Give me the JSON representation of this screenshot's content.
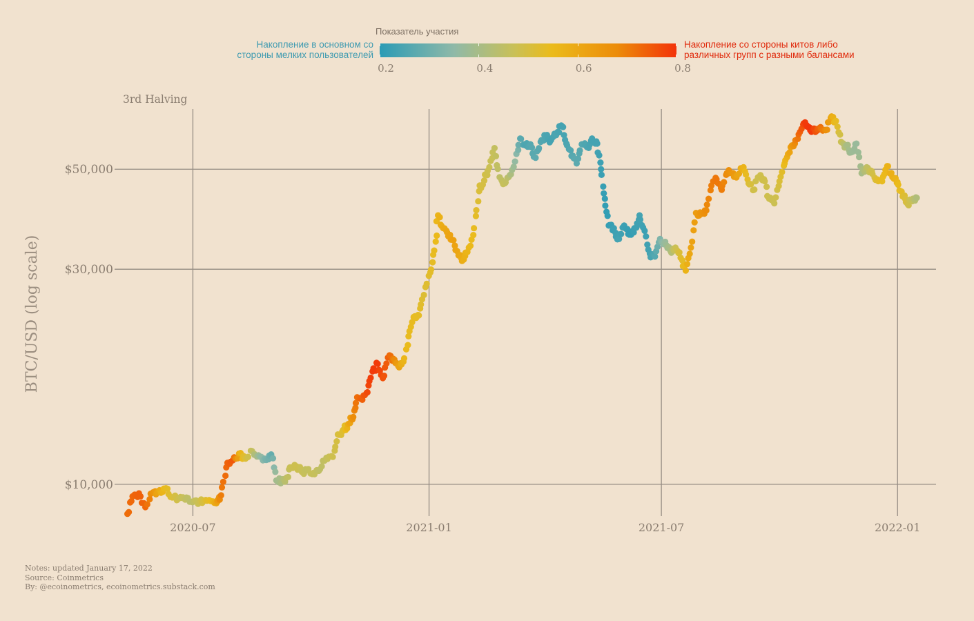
{
  "legend": {
    "title": "Показатель участия",
    "low_label_line1": "Накопление в основном со",
    "low_label_line2": "стороны мелких пользователей",
    "high_label_line1": "Накопление со стороны китов либо",
    "high_label_line2": "различных групп с разными балансами",
    "ticks": [
      "0.2",
      "0.4",
      "0.6",
      "0.8"
    ],
    "tick_values": [
      0.2,
      0.4,
      0.6,
      0.8
    ],
    "range": [
      0.2,
      0.8
    ],
    "colors": [
      "#2b9bb5",
      "#8fb9a8",
      "#c8c058",
      "#ebbb1b",
      "#ec8c0a",
      "#f3330a"
    ],
    "low_color": "#3d9ab0",
    "high_color": "#e02a0c"
  },
  "notes": [
    "Notes: updated January 17, 2022",
    "Source: Coinmetrics",
    "By: @ecoinometrics, ecoinometrics.substack.com"
  ],
  "chart_data": {
    "type": "scatter",
    "annotation": "3rd Halving",
    "ylabel": "BTC/USD (log scale)",
    "xlabel": "",
    "y_scale": "log",
    "ylim": [
      8500,
      68000
    ],
    "xlim": [
      "2020-05-01",
      "2022-01-31"
    ],
    "x_ticks": [
      "2020-07-01",
      "2021-01-01",
      "2021-07-01",
      "2022-01-01"
    ],
    "x_tick_labels": [
      "2020-07",
      "2021-01",
      "2021-07",
      "2022-01"
    ],
    "y_ticks": [
      10000,
      30000,
      50000
    ],
    "y_tick_labels": [
      "$10,000",
      "$30,000",
      "$50,000"
    ],
    "grid": true,
    "color_by": "participation",
    "series": [
      {
        "points": [
          {
            "date": "2020-05-11",
            "price": 8600,
            "participation": 0.72
          },
          {
            "date": "2020-05-15",
            "price": 9400,
            "participation": 0.73
          },
          {
            "date": "2020-05-20",
            "price": 9550,
            "participation": 0.74
          },
          {
            "date": "2020-05-25",
            "price": 8900,
            "participation": 0.73
          },
          {
            "date": "2020-05-31",
            "price": 9600,
            "participation": 0.66
          },
          {
            "date": "2020-06-05",
            "price": 9700,
            "participation": 0.6
          },
          {
            "date": "2020-06-10",
            "price": 9800,
            "participation": 0.55
          },
          {
            "date": "2020-06-15",
            "price": 9350,
            "participation": 0.5
          },
          {
            "date": "2020-06-20",
            "price": 9300,
            "participation": 0.46
          },
          {
            "date": "2020-06-25",
            "price": 9250,
            "participation": 0.43
          },
          {
            "date": "2020-06-30",
            "price": 9150,
            "participation": 0.41
          },
          {
            "date": "2020-07-05",
            "price": 9050,
            "participation": 0.45
          },
          {
            "date": "2020-07-10",
            "price": 9200,
            "participation": 0.5
          },
          {
            "date": "2020-07-15",
            "price": 9180,
            "participation": 0.56
          },
          {
            "date": "2020-07-20",
            "price": 9150,
            "participation": 0.63
          },
          {
            "date": "2020-07-23",
            "price": 9450,
            "participation": 0.7
          },
          {
            "date": "2020-07-27",
            "price": 10900,
            "participation": 0.73
          },
          {
            "date": "2020-08-01",
            "price": 11300,
            "participation": 0.75
          },
          {
            "date": "2020-08-06",
            "price": 11700,
            "participation": 0.6
          },
          {
            "date": "2020-08-11",
            "price": 11400,
            "participation": 0.5
          },
          {
            "date": "2020-08-16",
            "price": 11850,
            "participation": 0.43
          },
          {
            "date": "2020-08-21",
            "price": 11600,
            "participation": 0.35
          },
          {
            "date": "2020-08-26",
            "price": 11400,
            "participation": 0.3
          },
          {
            "date": "2020-08-31",
            "price": 11650,
            "participation": 0.27
          },
          {
            "date": "2020-09-04",
            "price": 10200,
            "participation": 0.36
          },
          {
            "date": "2020-09-08",
            "price": 10100,
            "participation": 0.38
          },
          {
            "date": "2020-09-12",
            "price": 10350,
            "participation": 0.42
          },
          {
            "date": "2020-09-16",
            "price": 10900,
            "participation": 0.45
          },
          {
            "date": "2020-09-20",
            "price": 10950,
            "participation": 0.46
          },
          {
            "date": "2020-09-24",
            "price": 10650,
            "participation": 0.44
          },
          {
            "date": "2020-09-28",
            "price": 10750,
            "participation": 0.43
          },
          {
            "date": "2020-10-03",
            "price": 10600,
            "participation": 0.44
          },
          {
            "date": "2020-10-08",
            "price": 10800,
            "participation": 0.42
          },
          {
            "date": "2020-10-13",
            "price": 11450,
            "participation": 0.43
          },
          {
            "date": "2020-10-18",
            "price": 11500,
            "participation": 0.46
          },
          {
            "date": "2020-10-22",
            "price": 12900,
            "participation": 0.49
          },
          {
            "date": "2020-10-26",
            "price": 13200,
            "participation": 0.52
          },
          {
            "date": "2020-10-30",
            "price": 13600,
            "participation": 0.6
          },
          {
            "date": "2020-11-03",
            "price": 14100,
            "participation": 0.68
          },
          {
            "date": "2020-11-06",
            "price": 15600,
            "participation": 0.72
          },
          {
            "date": "2020-11-10",
            "price": 15400,
            "participation": 0.74
          },
          {
            "date": "2020-11-14",
            "price": 16000,
            "participation": 0.77
          },
          {
            "date": "2020-11-18",
            "price": 17800,
            "participation": 0.79
          },
          {
            "date": "2020-11-22",
            "price": 18500,
            "participation": 0.79
          },
          {
            "date": "2020-11-26",
            "price": 17200,
            "participation": 0.76
          },
          {
            "date": "2020-11-30",
            "price": 19100,
            "participation": 0.74
          },
          {
            "date": "2020-12-04",
            "price": 19000,
            "participation": 0.7
          },
          {
            "date": "2020-12-08",
            "price": 18300,
            "participation": 0.63
          },
          {
            "date": "2020-12-12",
            "price": 18700,
            "participation": 0.58
          },
          {
            "date": "2020-12-16",
            "price": 21300,
            "participation": 0.55
          },
          {
            "date": "2020-12-20",
            "price": 23500,
            "participation": 0.55
          },
          {
            "date": "2020-12-24",
            "price": 23700,
            "participation": 0.54
          },
          {
            "date": "2020-12-28",
            "price": 26300,
            "participation": 0.51
          },
          {
            "date": "2021-01-02",
            "price": 29500,
            "participation": 0.53
          },
          {
            "date": "2021-01-05",
            "price": 33000,
            "participation": 0.55
          },
          {
            "date": "2021-01-08",
            "price": 39500,
            "participation": 0.58
          },
          {
            "date": "2021-01-12",
            "price": 37000,
            "participation": 0.6
          },
          {
            "date": "2021-01-16",
            "price": 35500,
            "participation": 0.62
          },
          {
            "date": "2021-01-20",
            "price": 34800,
            "participation": 0.63
          },
          {
            "date": "2021-01-24",
            "price": 32200,
            "participation": 0.61
          },
          {
            "date": "2021-01-28",
            "price": 31500,
            "participation": 0.59
          },
          {
            "date": "2021-02-01",
            "price": 33500,
            "participation": 0.57
          },
          {
            "date": "2021-02-05",
            "price": 37000,
            "participation": 0.55
          },
          {
            "date": "2021-02-09",
            "price": 44700,
            "participation": 0.5
          },
          {
            "date": "2021-02-13",
            "price": 47200,
            "participation": 0.48
          },
          {
            "date": "2021-02-17",
            "price": 50500,
            "participation": 0.45
          },
          {
            "date": "2021-02-21",
            "price": 55700,
            "participation": 0.43
          },
          {
            "date": "2021-02-25",
            "price": 48000,
            "participation": 0.42
          },
          {
            "date": "2021-03-01",
            "price": 46500,
            "participation": 0.44
          },
          {
            "date": "2021-03-05",
            "price": 48500,
            "participation": 0.4
          },
          {
            "date": "2021-03-09",
            "price": 52000,
            "participation": 0.33
          },
          {
            "date": "2021-03-13",
            "price": 58500,
            "participation": 0.26
          },
          {
            "date": "2021-03-17",
            "price": 56500,
            "participation": 0.24
          },
          {
            "date": "2021-03-21",
            "price": 56800,
            "participation": 0.25
          },
          {
            "date": "2021-03-25",
            "price": 53000,
            "participation": 0.26
          },
          {
            "date": "2021-03-29",
            "price": 57500,
            "participation": 0.25
          },
          {
            "date": "2021-04-02",
            "price": 59000,
            "participation": 0.24
          },
          {
            "date": "2021-04-06",
            "price": 58000,
            "participation": 0.23
          },
          {
            "date": "2021-04-10",
            "price": 59500,
            "participation": 0.24
          },
          {
            "date": "2021-04-14",
            "price": 62500,
            "participation": 0.23
          },
          {
            "date": "2021-04-18",
            "price": 57000,
            "participation": 0.24
          },
          {
            "date": "2021-04-22",
            "price": 53500,
            "participation": 0.25
          },
          {
            "date": "2021-04-26",
            "price": 51500,
            "participation": 0.26
          },
          {
            "date": "2021-04-30",
            "price": 56800,
            "participation": 0.25
          },
          {
            "date": "2021-05-04",
            "price": 56000,
            "participation": 0.24
          },
          {
            "date": "2021-05-08",
            "price": 58500,
            "participation": 0.23
          },
          {
            "date": "2021-05-12",
            "price": 57000,
            "participation": 0.23
          },
          {
            "date": "2021-05-15",
            "price": 50000,
            "participation": 0.22
          },
          {
            "date": "2021-05-18",
            "price": 43000,
            "participation": 0.21
          },
          {
            "date": "2021-05-21",
            "price": 37500,
            "participation": 0.21
          },
          {
            "date": "2021-05-25",
            "price": 37000,
            "participation": 0.22
          },
          {
            "date": "2021-05-29",
            "price": 35000,
            "participation": 0.23
          },
          {
            "date": "2021-06-02",
            "price": 37500,
            "participation": 0.22
          },
          {
            "date": "2021-06-06",
            "price": 35800,
            "participation": 0.21
          },
          {
            "date": "2021-06-10",
            "price": 37000,
            "participation": 0.22
          },
          {
            "date": "2021-06-14",
            "price": 39500,
            "participation": 0.23
          },
          {
            "date": "2021-06-18",
            "price": 36500,
            "participation": 0.22
          },
          {
            "date": "2021-06-22",
            "price": 32500,
            "participation": 0.23
          },
          {
            "date": "2021-06-26",
            "price": 32000,
            "participation": 0.25
          },
          {
            "date": "2021-06-30",
            "price": 35000,
            "participation": 0.3
          },
          {
            "date": "2021-07-04",
            "price": 34500,
            "participation": 0.34
          },
          {
            "date": "2021-07-08",
            "price": 33000,
            "participation": 0.38
          },
          {
            "date": "2021-07-12",
            "price": 33500,
            "participation": 0.45
          },
          {
            "date": "2021-07-16",
            "price": 31800,
            "participation": 0.52
          },
          {
            "date": "2021-07-20",
            "price": 29800,
            "participation": 0.58
          },
          {
            "date": "2021-07-24",
            "price": 33500,
            "participation": 0.62
          },
          {
            "date": "2021-07-28",
            "price": 40000,
            "participation": 0.64
          },
          {
            "date": "2021-08-01",
            "price": 39800,
            "participation": 0.66
          },
          {
            "date": "2021-08-05",
            "price": 40500,
            "participation": 0.68
          },
          {
            "date": "2021-08-09",
            "price": 46000,
            "participation": 0.7
          },
          {
            "date": "2021-08-13",
            "price": 47500,
            "participation": 0.71
          },
          {
            "date": "2021-08-17",
            "price": 45000,
            "participation": 0.7
          },
          {
            "date": "2021-08-21",
            "price": 49000,
            "participation": 0.68
          },
          {
            "date": "2021-08-25",
            "price": 49000,
            "participation": 0.66
          },
          {
            "date": "2021-08-29",
            "price": 48500,
            "participation": 0.62
          },
          {
            "date": "2021-09-03",
            "price": 50500,
            "participation": 0.58
          },
          {
            "date": "2021-09-07",
            "price": 46500,
            "participation": 0.52
          },
          {
            "date": "2021-09-11",
            "price": 45000,
            "participation": 0.47
          },
          {
            "date": "2021-09-15",
            "price": 48000,
            "participation": 0.46
          },
          {
            "date": "2021-09-19",
            "price": 47500,
            "participation": 0.47
          },
          {
            "date": "2021-09-23",
            "price": 43000,
            "participation": 0.46
          },
          {
            "date": "2021-09-27",
            "price": 42000,
            "participation": 0.45
          },
          {
            "date": "2021-10-01",
            "price": 47000,
            "participation": 0.5
          },
          {
            "date": "2021-10-05",
            "price": 51500,
            "participation": 0.56
          },
          {
            "date": "2021-10-09",
            "price": 54500,
            "participation": 0.62
          },
          {
            "date": "2021-10-13",
            "price": 57000,
            "participation": 0.68
          },
          {
            "date": "2021-10-17",
            "price": 60500,
            "participation": 0.74
          },
          {
            "date": "2021-10-21",
            "price": 63500,
            "participation": 0.79
          },
          {
            "date": "2021-10-25",
            "price": 61000,
            "participation": 0.8
          },
          {
            "date": "2021-10-29",
            "price": 60500,
            "participation": 0.76
          },
          {
            "date": "2021-11-02",
            "price": 62000,
            "participation": 0.72
          },
          {
            "date": "2021-11-06",
            "price": 61000,
            "participation": 0.68
          },
          {
            "date": "2021-11-10",
            "price": 65000,
            "participation": 0.62
          },
          {
            "date": "2021-11-14",
            "price": 64000,
            "participation": 0.55
          },
          {
            "date": "2021-11-18",
            "price": 57500,
            "participation": 0.45
          },
          {
            "date": "2021-11-22",
            "price": 56500,
            "participation": 0.38
          },
          {
            "date": "2021-11-26",
            "price": 54500,
            "participation": 0.35
          },
          {
            "date": "2021-11-30",
            "price": 57000,
            "participation": 0.34
          },
          {
            "date": "2021-12-04",
            "price": 49000,
            "participation": 0.37
          },
          {
            "date": "2021-12-08",
            "price": 50500,
            "participation": 0.42
          },
          {
            "date": "2021-12-12",
            "price": 49500,
            "participation": 0.46
          },
          {
            "date": "2021-12-16",
            "price": 47500,
            "participation": 0.52
          },
          {
            "date": "2021-12-20",
            "price": 47000,
            "participation": 0.55
          },
          {
            "date": "2021-12-24",
            "price": 50800,
            "participation": 0.58
          },
          {
            "date": "2021-12-28",
            "price": 48000,
            "participation": 0.59
          },
          {
            "date": "2022-01-01",
            "price": 46800,
            "participation": 0.57
          },
          {
            "date": "2022-01-05",
            "price": 43500,
            "participation": 0.52
          },
          {
            "date": "2022-01-09",
            "price": 41800,
            "participation": 0.48
          },
          {
            "date": "2022-01-13",
            "price": 43000,
            "participation": 0.42
          },
          {
            "date": "2022-01-16",
            "price": 43200,
            "participation": 0.39
          }
        ]
      }
    ]
  }
}
